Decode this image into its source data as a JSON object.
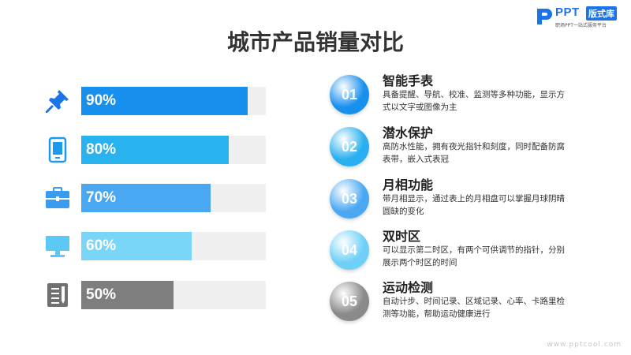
{
  "brand": {
    "name": "PPT",
    "tag": "版式库",
    "slogan": "职场PPT一站式服务平台"
  },
  "title": "城市产品销量对比",
  "bars": [
    {
      "label": "90%",
      "value": 0.9,
      "color": "#1890ee",
      "icon": "pushpin-icon"
    },
    {
      "label": "80%",
      "value": 0.8,
      "color": "#28b3ef",
      "icon": "tablet-icon"
    },
    {
      "label": "70%",
      "value": 0.7,
      "color": "#4aa8f2",
      "icon": "briefcase-icon"
    },
    {
      "label": "60%",
      "value": 0.6,
      "color": "#7ad6f8",
      "icon": "monitor-icon"
    },
    {
      "label": "50%",
      "value": 0.5,
      "color": "#7e7e7e",
      "icon": "notepad-icon"
    }
  ],
  "items": [
    {
      "num": "01",
      "title": "智能手表",
      "desc": "具备提醒、导航、校准、监测等多种功能，显示方式以文字或图像为主",
      "color": "#1890ee"
    },
    {
      "num": "02",
      "title": "潜水保护",
      "desc": "高防水性能，拥有夜光指针和刻度，同时配备防腐表带，嵌入式表冠",
      "color": "#2ab0f0"
    },
    {
      "num": "03",
      "title": "月相功能",
      "desc": "带月相显示，通过表上的月相盘可以掌握月球阴晴圆缺的变化",
      "color": "#4aa8f2"
    },
    {
      "num": "04",
      "title": "双时区",
      "desc": "可以显示第二时区，有两个可供调节的指针，分别展示两个时区的时间",
      "color": "#6fd0f7"
    },
    {
      "num": "05",
      "title": "运动检测",
      "desc": "自动计步、时间记录、区域记录、心率、卡路里检测等功能，帮助运动健康进行",
      "color": "#8a8a8a"
    }
  ],
  "watermark": "www.pptcool.com"
}
